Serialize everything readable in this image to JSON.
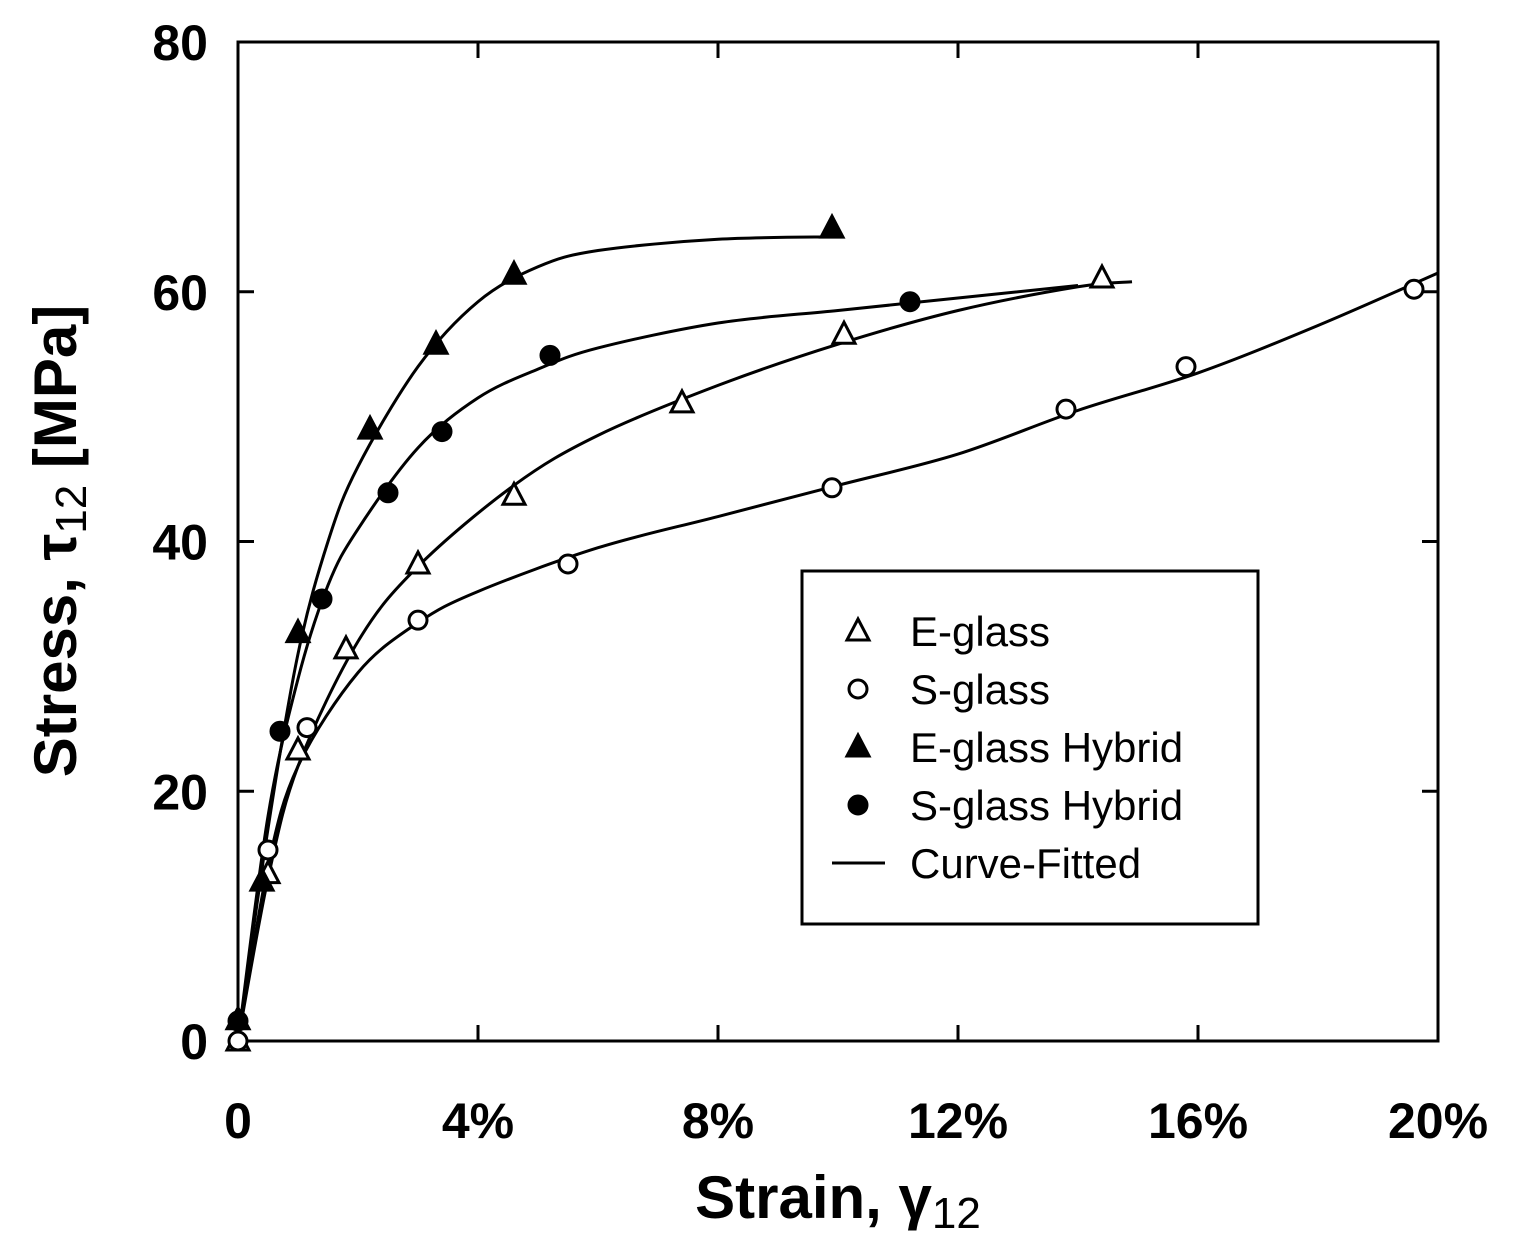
{
  "chart_data": {
    "type": "scatter",
    "xlabel": [
      "Strain, γ",
      "12"
    ],
    "ylabel": [
      "Stress, τ",
      "12",
      " [MPa]"
    ],
    "xlim": [
      0,
      20
    ],
    "ylim": [
      0,
      80
    ],
    "xticks": [
      0,
      {
        "value": 4,
        "label": "4%"
      },
      {
        "value": 8,
        "label": "8%"
      },
      {
        "value": 12,
        "label": "12%"
      },
      {
        "value": 16,
        "label": "16%"
      },
      {
        "value": 20,
        "label": "20%"
      }
    ],
    "yticks": [
      0,
      20,
      40,
      60,
      80
    ],
    "grid": false,
    "legend_position": "lower right",
    "series": [
      {
        "name": "E-glass",
        "marker": "triangle",
        "filled": false,
        "color": "#000000",
        "x": [
          0,
          0.5,
          1.0,
          1.8,
          3.0,
          4.6,
          7.4,
          10.1,
          14.4
        ],
        "values": [
          0,
          13.4,
          23.3,
          31.4,
          38.2,
          43.7,
          51.1,
          56.6,
          61.1
        ]
      },
      {
        "name": "S-glass",
        "marker": "circle",
        "filled": false,
        "color": "#000000",
        "x": [
          0,
          0.5,
          1.15,
          3.0,
          5.5,
          9.9,
          13.8,
          15.8,
          19.6
        ],
        "values": [
          0,
          15.3,
          25.1,
          33.7,
          38.2,
          44.3,
          50.6,
          54.0,
          60.2
        ]
      },
      {
        "name": "E-glass Hybrid",
        "marker": "triangle",
        "filled": true,
        "color": "#000000",
        "x": [
          0,
          0.4,
          1.0,
          2.2,
          3.3,
          4.6,
          9.9
        ],
        "values": [
          1.7,
          12.8,
          32.7,
          49.0,
          55.8,
          61.4,
          65.1
        ]
      },
      {
        "name": "S-glass Hybrid",
        "marker": "circle",
        "filled": true,
        "color": "#000000",
        "x": [
          0,
          0.7,
          1.4,
          2.5,
          3.4,
          5.2,
          11.2
        ],
        "values": [
          1.6,
          24.8,
          35.4,
          43.9,
          48.8,
          54.9,
          59.2
        ]
      }
    ],
    "fit_name": "Curve-Fitted",
    "fit_color": "#000000",
    "fits": [
      {
        "x": [
          0,
          0.5,
          1,
          2,
          3,
          4.6,
          6,
          8,
          10,
          12,
          14,
          14.9
        ],
        "values": [
          0,
          13,
          22,
          32,
          38,
          44.5,
          48.5,
          52.5,
          55.8,
          58.5,
          60.4,
          60.8
        ]
      },
      {
        "x": [
          0,
          0.5,
          1,
          2,
          3,
          4,
          6,
          8,
          10,
          12,
          14,
          16,
          18,
          20
        ],
        "values": [
          0,
          14,
          22,
          29.5,
          33.5,
          36,
          39.5,
          42,
          44.5,
          47,
          50.5,
          53.5,
          57.3,
          61.5
        ]
      },
      {
        "x": [
          0,
          0.5,
          1,
          1.5,
          2,
          3,
          4,
          5,
          6,
          8,
          10
        ],
        "values": [
          0,
          17,
          31,
          40,
          46,
          54,
          59.2,
          62,
          63.3,
          64.2,
          64.4
        ]
      },
      {
        "x": [
          0,
          0.5,
          1,
          1.5,
          2,
          3,
          4,
          5,
          6,
          8,
          10,
          12,
          14
        ],
        "values": [
          0,
          18,
          29,
          36.5,
          41,
          47.5,
          51.5,
          53.8,
          55.5,
          57.5,
          58.5,
          59.5,
          60.5
        ]
      }
    ]
  }
}
